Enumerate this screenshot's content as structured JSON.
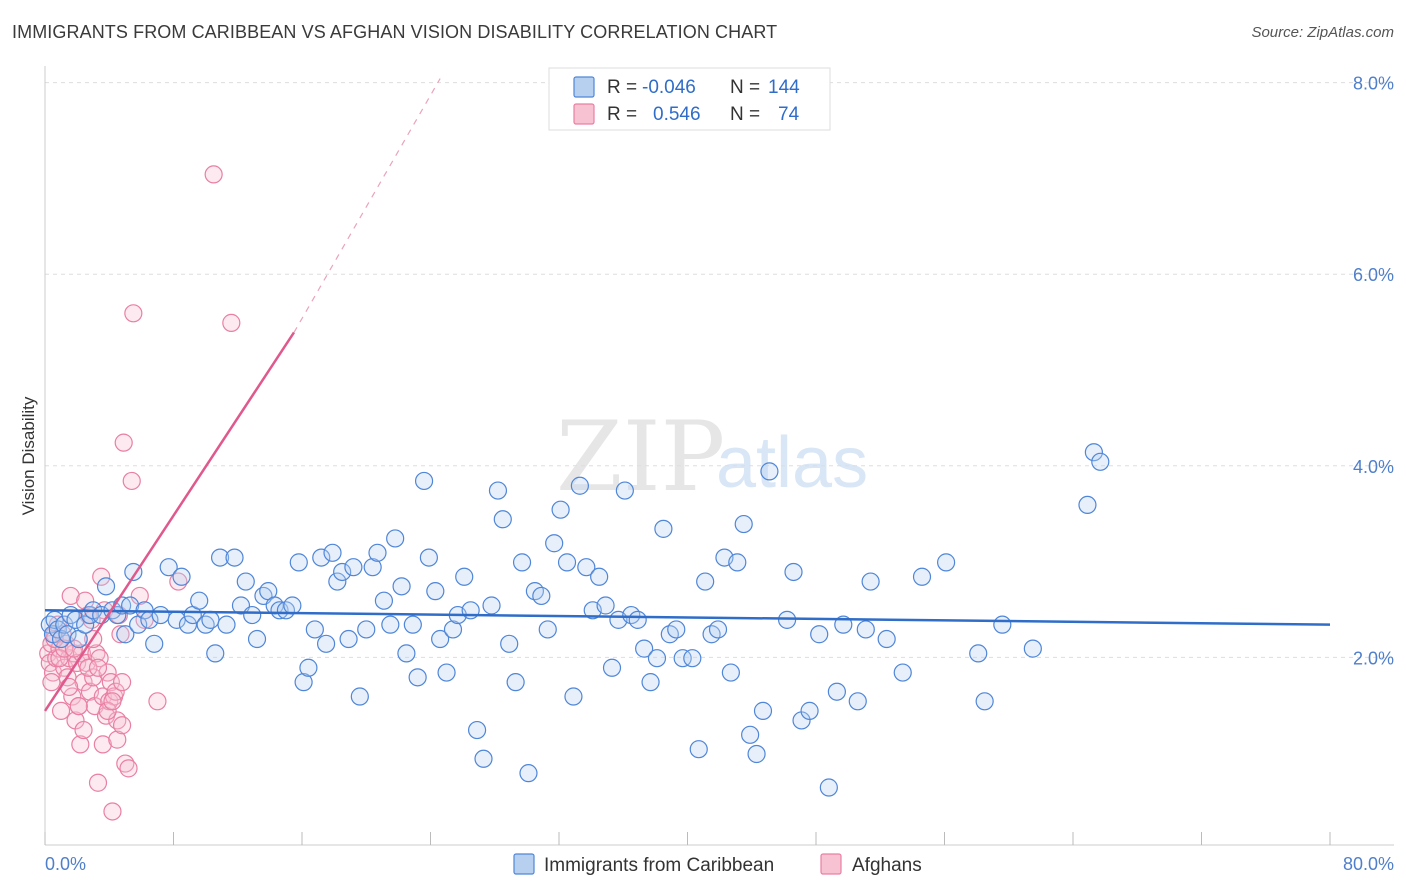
{
  "header": {
    "title": "IMMIGRANTS FROM CARIBBEAN VS AFGHAN VISION DISABILITY CORRELATION CHART",
    "source": "Source: ZipAtlas.com"
  },
  "watermark": {
    "zip": "ZIP",
    "atlas": "atlas"
  },
  "legend": {
    "rows": [
      {
        "r_label": "R =",
        "r_value": "-0.046",
        "n_label": "N =",
        "n_value": "144"
      },
      {
        "r_label": "R =",
        "r_value": "0.546",
        "n_label": "N =",
        "n_value": "74"
      }
    ]
  },
  "bottom_legend": [
    {
      "label": "Immigrants from Caribbean"
    },
    {
      "label": "Afghans"
    }
  ],
  "colors": {
    "blue": "#4f86d8",
    "blue_fill": "#b8d0f0",
    "blue_line": "#2f6dc9",
    "pink": "#e97fa2",
    "pink_fill": "#f7c3d3",
    "pink_line": "#e0598c",
    "grid": "#dddddd",
    "tick_text": "#4f7fcb"
  },
  "chart_data": {
    "type": "scatter",
    "title": "IMMIGRANTS FROM CARIBBEAN VS AFGHAN VISION DISABILITY CORRELATION CHART",
    "xlabel": "",
    "ylabel": "Vision Disability",
    "xlim": [
      0,
      80
    ],
    "ylim": [
      0,
      8.4
    ],
    "x_tick_labels": [
      "0.0%",
      "80.0%"
    ],
    "y_ticks": [
      2,
      4,
      6,
      8
    ],
    "y_tick_labels": [
      "2.0%",
      "4.0%",
      "6.0%",
      "8.0%"
    ],
    "series": [
      {
        "name": "Immigrants from Caribbean",
        "color": "#4f86d8",
        "R": -0.046,
        "N": 144,
        "trend": {
          "x1": 0,
          "y1": 2.45,
          "x2": 80,
          "y2": 2.3
        },
        "points": [
          [
            0.3,
            2.3
          ],
          [
            0.5,
            2.2
          ],
          [
            0.6,
            2.35
          ],
          [
            0.8,
            2.25
          ],
          [
            1.0,
            2.15
          ],
          [
            1.2,
            2.3
          ],
          [
            1.4,
            2.2
          ],
          [
            1.6,
            2.4
          ],
          [
            1.9,
            2.35
          ],
          [
            2.1,
            2.15
          ],
          [
            2.5,
            2.3
          ],
          [
            2.8,
            2.4
          ],
          [
            3.0,
            2.45
          ],
          [
            3.5,
            2.4
          ],
          [
            3.8,
            2.7
          ],
          [
            4.2,
            2.45
          ],
          [
            4.5,
            2.4
          ],
          [
            4.8,
            2.5
          ],
          [
            5.0,
            2.2
          ],
          [
            5.3,
            2.5
          ],
          [
            5.5,
            2.85
          ],
          [
            5.8,
            2.3
          ],
          [
            6.2,
            2.45
          ],
          [
            6.5,
            2.35
          ],
          [
            6.8,
            2.1
          ],
          [
            7.2,
            2.4
          ],
          [
            7.7,
            2.9
          ],
          [
            8.2,
            2.35
          ],
          [
            8.5,
            2.8
          ],
          [
            8.9,
            2.3
          ],
          [
            9.2,
            2.4
          ],
          [
            9.6,
            2.55
          ],
          [
            10.0,
            2.3
          ],
          [
            10.3,
            2.35
          ],
          [
            10.6,
            2.0
          ],
          [
            10.9,
            3.0
          ],
          [
            11.3,
            2.3
          ],
          [
            11.8,
            3.0
          ],
          [
            12.2,
            2.5
          ],
          [
            12.5,
            2.75
          ],
          [
            12.9,
            2.4
          ],
          [
            13.2,
            2.15
          ],
          [
            13.6,
            2.6
          ],
          [
            13.9,
            2.65
          ],
          [
            14.3,
            2.5
          ],
          [
            14.6,
            2.45
          ],
          [
            15.0,
            2.45
          ],
          [
            15.4,
            2.5
          ],
          [
            15.8,
            2.95
          ],
          [
            16.1,
            1.7
          ],
          [
            16.4,
            1.85
          ],
          [
            16.8,
            2.25
          ],
          [
            17.2,
            3.0
          ],
          [
            17.5,
            2.1
          ],
          [
            17.9,
            3.05
          ],
          [
            18.2,
            2.75
          ],
          [
            18.5,
            2.85
          ],
          [
            18.9,
            2.15
          ],
          [
            19.2,
            2.9
          ],
          [
            19.6,
            1.55
          ],
          [
            20.0,
            2.25
          ],
          [
            20.4,
            2.9
          ],
          [
            20.7,
            3.05
          ],
          [
            21.1,
            2.55
          ],
          [
            21.5,
            2.3
          ],
          [
            21.8,
            3.2
          ],
          [
            22.2,
            2.7
          ],
          [
            22.5,
            2.0
          ],
          [
            22.9,
            2.3
          ],
          [
            23.2,
            1.75
          ],
          [
            23.6,
            3.8
          ],
          [
            23.9,
            3.0
          ],
          [
            24.3,
            2.65
          ],
          [
            24.6,
            2.15
          ],
          [
            25.0,
            1.8
          ],
          [
            25.4,
            2.25
          ],
          [
            25.7,
            2.4
          ],
          [
            26.1,
            2.8
          ],
          [
            26.5,
            2.45
          ],
          [
            26.9,
            1.2
          ],
          [
            27.3,
            0.9
          ],
          [
            27.8,
            2.5
          ],
          [
            28.2,
            3.7
          ],
          [
            28.5,
            3.4
          ],
          [
            28.9,
            2.1
          ],
          [
            29.3,
            1.7
          ],
          [
            29.7,
            2.95
          ],
          [
            30.1,
            0.75
          ],
          [
            30.5,
            2.65
          ],
          [
            30.9,
            2.6
          ],
          [
            31.3,
            2.25
          ],
          [
            31.7,
            3.15
          ],
          [
            32.1,
            3.5
          ],
          [
            32.5,
            2.95
          ],
          [
            32.9,
            1.55
          ],
          [
            33.3,
            3.75
          ],
          [
            33.7,
            2.9
          ],
          [
            34.1,
            2.45
          ],
          [
            34.5,
            2.8
          ],
          [
            34.9,
            2.5
          ],
          [
            35.3,
            1.85
          ],
          [
            35.7,
            2.35
          ],
          [
            36.1,
            3.7
          ],
          [
            36.5,
            2.4
          ],
          [
            36.9,
            2.35
          ],
          [
            37.3,
            2.05
          ],
          [
            37.7,
            1.7
          ],
          [
            38.1,
            1.95
          ],
          [
            38.5,
            3.3
          ],
          [
            38.9,
            2.2
          ],
          [
            39.3,
            2.25
          ],
          [
            39.7,
            1.95
          ],
          [
            40.3,
            1.95
          ],
          [
            40.7,
            1.0
          ],
          [
            41.1,
            2.75
          ],
          [
            41.5,
            2.2
          ],
          [
            41.9,
            2.25
          ],
          [
            42.3,
            3.0
          ],
          [
            42.7,
            1.8
          ],
          [
            43.1,
            2.95
          ],
          [
            43.5,
            3.35
          ],
          [
            43.9,
            1.15
          ],
          [
            44.3,
            0.95
          ],
          [
            44.7,
            1.4
          ],
          [
            45.1,
            3.9
          ],
          [
            46.2,
            2.35
          ],
          [
            46.6,
            2.85
          ],
          [
            47.1,
            1.3
          ],
          [
            47.6,
            1.4
          ],
          [
            48.2,
            2.2
          ],
          [
            48.8,
            0.6
          ],
          [
            49.3,
            1.6
          ],
          [
            49.7,
            2.3
          ],
          [
            50.6,
            1.5
          ],
          [
            51.1,
            2.25
          ],
          [
            51.4,
            2.75
          ],
          [
            52.4,
            2.15
          ],
          [
            53.4,
            1.8
          ],
          [
            54.6,
            2.8
          ],
          [
            56.1,
            2.95
          ],
          [
            58.1,
            2.0
          ],
          [
            58.5,
            1.5
          ],
          [
            59.6,
            2.3
          ],
          [
            61.5,
            2.05
          ],
          [
            64.9,
            3.55
          ],
          [
            65.3,
            4.1
          ],
          [
            65.7,
            4.0
          ]
        ]
      },
      {
        "name": "Afghans",
        "color": "#e97fa2",
        "R": 0.546,
        "N": 74,
        "trend": {
          "x1": 0,
          "y1": 1.4,
          "x2": 15.5,
          "y2": 5.35,
          "dash_x2": 24.6,
          "dash_y2": 8.0
        },
        "points": [
          [
            0.2,
            2.0
          ],
          [
            0.3,
            1.9
          ],
          [
            0.4,
            2.1
          ],
          [
            0.5,
            1.8
          ],
          [
            0.6,
            2.2
          ],
          [
            0.7,
            1.95
          ],
          [
            0.8,
            2.3
          ],
          [
            0.9,
            2.05
          ],
          [
            1.0,
            1.4
          ],
          [
            1.1,
            2.2
          ],
          [
            1.2,
            1.85
          ],
          [
            1.3,
            2.1
          ],
          [
            1.4,
            1.75
          ],
          [
            1.5,
            1.95
          ],
          [
            1.6,
            2.6
          ],
          [
            1.7,
            1.55
          ],
          [
            1.8,
            2.0
          ],
          [
            1.9,
            1.3
          ],
          [
            2.0,
            1.9
          ],
          [
            2.1,
            1.45
          ],
          [
            2.2,
            1.05
          ],
          [
            2.3,
            2.0
          ],
          [
            2.4,
            1.7
          ],
          [
            2.5,
            2.55
          ],
          [
            2.6,
            1.9
          ],
          [
            2.7,
            2.4
          ],
          [
            2.8,
            1.6
          ],
          [
            2.9,
            2.35
          ],
          [
            3.0,
            1.75
          ],
          [
            3.1,
            1.45
          ],
          [
            3.2,
            2.0
          ],
          [
            3.3,
            0.65
          ],
          [
            3.4,
            1.95
          ],
          [
            3.5,
            2.8
          ],
          [
            3.6,
            1.55
          ],
          [
            3.7,
            2.45
          ],
          [
            3.8,
            1.35
          ],
          [
            3.9,
            1.8
          ],
          [
            4.0,
            1.5
          ],
          [
            4.1,
            1.7
          ],
          [
            4.2,
            0.35
          ],
          [
            4.3,
            1.55
          ],
          [
            4.4,
            1.6
          ],
          [
            4.5,
            1.3
          ],
          [
            4.6,
            2.4
          ],
          [
            4.7,
            2.2
          ],
          [
            4.8,
            1.7
          ],
          [
            4.9,
            4.2
          ],
          [
            5.0,
            0.85
          ],
          [
            5.2,
            0.8
          ],
          [
            5.4,
            3.8
          ],
          [
            5.5,
            5.55
          ],
          [
            5.9,
            2.6
          ],
          [
            6.2,
            2.35
          ],
          [
            7.0,
            1.5
          ],
          [
            8.3,
            2.75
          ],
          [
            10.5,
            7.0
          ],
          [
            11.6,
            5.45
          ],
          [
            0.4,
            1.7
          ],
          [
            0.6,
            2.15
          ],
          [
            0.9,
            1.95
          ],
          [
            1.2,
            2.05
          ],
          [
            1.5,
            1.65
          ],
          [
            1.8,
            2.05
          ],
          [
            2.1,
            1.45
          ],
          [
            2.4,
            1.2
          ],
          [
            2.7,
            1.85
          ],
          [
            3.0,
            2.15
          ],
          [
            3.3,
            1.85
          ],
          [
            3.6,
            1.05
          ],
          [
            3.9,
            1.4
          ],
          [
            4.2,
            1.5
          ],
          [
            4.5,
            1.1
          ],
          [
            4.8,
            1.25
          ]
        ]
      }
    ]
  }
}
